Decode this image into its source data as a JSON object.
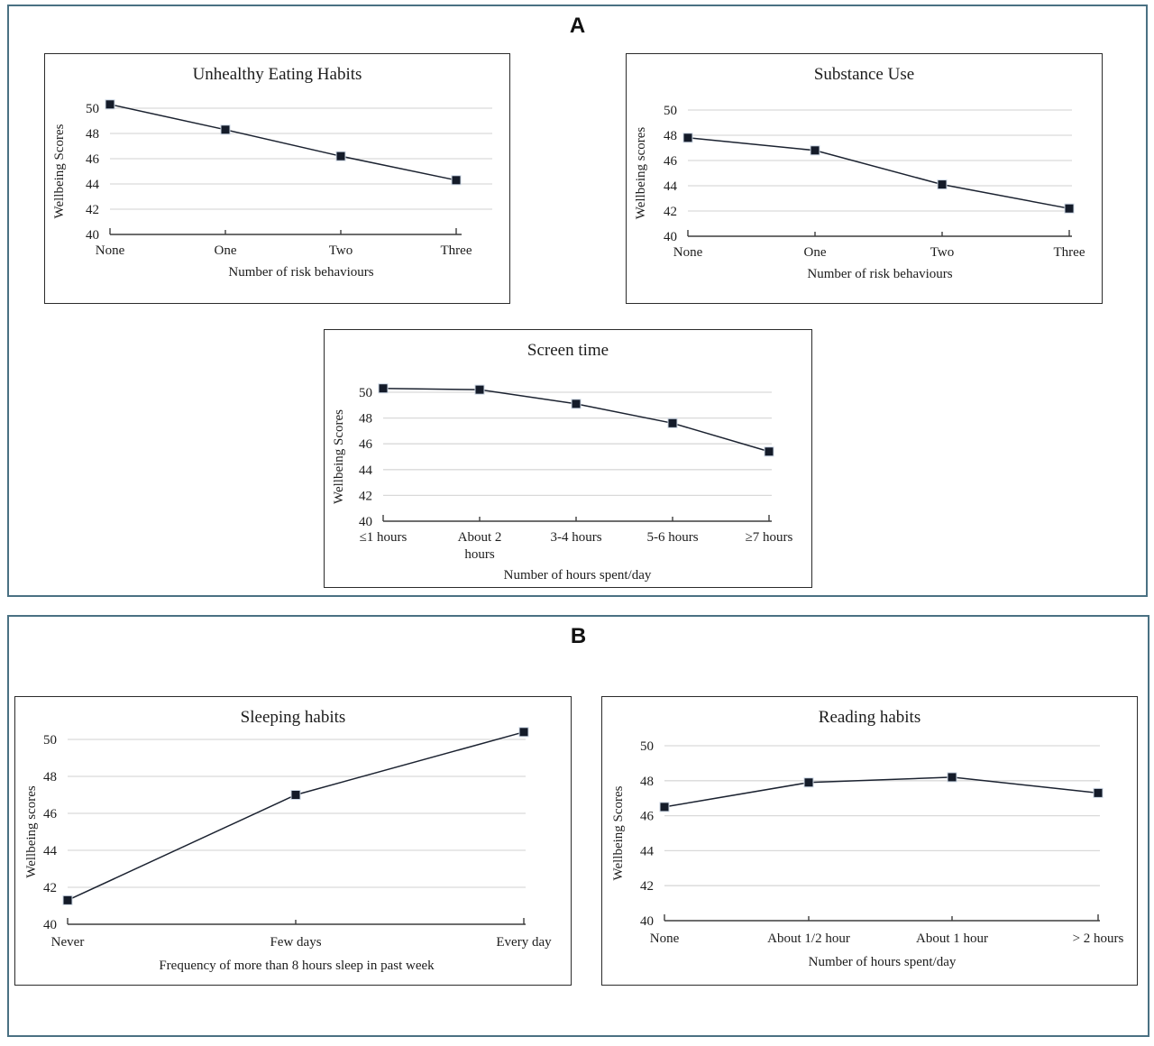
{
  "figure": {
    "panels": [
      {
        "label": "A"
      },
      {
        "label": "B"
      }
    ],
    "accent_border_color": "#4a7183"
  },
  "chart_data": [
    {
      "id": "unhealthy-eating-habits",
      "panel": "A",
      "type": "line",
      "title": "Unhealthy Eating Habits",
      "categories": [
        "None",
        "One",
        "Two",
        "Three"
      ],
      "values": [
        50.3,
        48.3,
        46.2,
        44.3
      ],
      "xlabel": "Number of risk behaviours",
      "ylabel": "Wellbeing Scores",
      "ylim": [
        40,
        51
      ],
      "yticks": [
        "40",
        "42",
        "44",
        "46",
        "48",
        "50"
      ],
      "grid": true,
      "legend": "none",
      "marker": "square",
      "line_color": "#1b2230",
      "marker_color": "#141b29",
      "grid_color": "#d9d9d9",
      "axis_color": "#3d3d3d"
    },
    {
      "id": "substance-use",
      "panel": "A",
      "type": "line",
      "title": "Substance Use",
      "categories": [
        "None",
        "One",
        "Two",
        "Three"
      ],
      "values": [
        47.8,
        46.8,
        44.1,
        42.2
      ],
      "xlabel": "Number of risk behaviours",
      "ylabel": "Wellbeing scores",
      "ylim": [
        40,
        51
      ],
      "yticks": [
        "40",
        "42",
        "44",
        "46",
        "48",
        "50"
      ],
      "grid": true,
      "legend": "none",
      "marker": "square",
      "line_color": "#1b2230",
      "marker_color": "#141b29",
      "grid_color": "#d9d9d9",
      "axis_color": "#3d3d3d"
    },
    {
      "id": "screen-time",
      "panel": "A",
      "type": "line",
      "title": "Screen time",
      "categories": [
        "≤1 hours",
        "About 2 hours",
        "3-4 hours",
        "5-6 hours",
        "≥7 hours"
      ],
      "values": [
        50.3,
        50.2,
        49.1,
        47.6,
        45.4
      ],
      "xlabel": "Number of hours spent/day",
      "ylabel": "Wellbeing Scores",
      "ylim": [
        40,
        51
      ],
      "yticks": [
        "40",
        "42",
        "44",
        "46",
        "48",
        "50"
      ],
      "grid": true,
      "legend": "none",
      "marker": "square",
      "line_color": "#1b2230",
      "marker_color": "#141b29",
      "grid_color": "#d9d9d9",
      "axis_color": "#3d3d3d"
    },
    {
      "id": "sleeping-habits",
      "panel": "B",
      "type": "line",
      "title": "Sleeping habits",
      "categories": [
        "Never",
        "Few days",
        "Every day"
      ],
      "values": [
        41.3,
        47.0,
        50.4
      ],
      "xlabel": "Frequency of more than 8 hours sleep in past week",
      "ylabel": "Wellbeing  scores",
      "ylim": [
        40,
        51
      ],
      "yticks": [
        "40",
        "42",
        "44",
        "46",
        "48",
        "50"
      ],
      "grid": true,
      "legend": "none",
      "marker": "square",
      "line_color": "#1b2230",
      "marker_color": "#141b29",
      "grid_color": "#d9d9d9",
      "axis_color": "#3d3d3d"
    },
    {
      "id": "reading-habits",
      "panel": "B",
      "type": "line",
      "title": "Reading habits",
      "categories": [
        "None",
        "About 1/2 hour",
        "About 1 hour",
        "> 2 hours"
      ],
      "values": [
        46.5,
        47.9,
        48.2,
        47.3
      ],
      "xlabel": "Number of hours spent/day",
      "ylabel": "Wellbeing Scores",
      "ylim": [
        40,
        51
      ],
      "yticks": [
        "40",
        "42",
        "44",
        "46",
        "48",
        "50"
      ],
      "grid": true,
      "legend": "none",
      "marker": "square",
      "line_color": "#1b2230",
      "marker_color": "#141b29",
      "grid_color": "#d9d9d9",
      "axis_color": "#3d3d3d"
    }
  ]
}
